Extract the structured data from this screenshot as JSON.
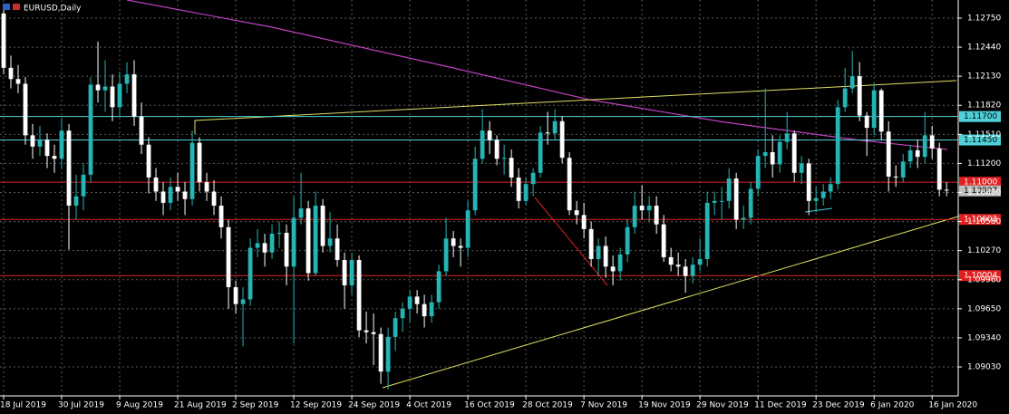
{
  "chart_data": {
    "type": "candlestick",
    "title": "EURUSD,Daily",
    "xlim": [
      -0.5,
      131.6
    ],
    "xticks": [
      {
        "value": 0,
        "label": "18 Jul 2019"
      },
      {
        "value": 8,
        "label": "30 Jul 2019"
      },
      {
        "value": 16,
        "label": "9 Aug 2019"
      },
      {
        "value": 24,
        "label": "21 Aug 2019"
      },
      {
        "value": 32,
        "label": "2 Sep 2019"
      },
      {
        "value": 40,
        "label": "12 Sep 2019"
      },
      {
        "value": 48,
        "label": "24 Sep 2019"
      },
      {
        "value": 56,
        "label": "4 Oct 2019"
      },
      {
        "value": 64,
        "label": "16 Oct 2019"
      },
      {
        "value": 72,
        "label": "28 Oct 2019"
      },
      {
        "value": 80,
        "label": "7 Nov 2019"
      },
      {
        "value": 88,
        "label": "19 Nov 2019"
      },
      {
        "value": 96,
        "label": "29 Nov 2019"
      },
      {
        "value": 104,
        "label": "11 Dec 2019"
      },
      {
        "value": 112,
        "label": "23 Dec 2019"
      },
      {
        "value": 120,
        "label": "6 Jan 2020"
      },
      {
        "value": 128,
        "label": "16 Jan 2020"
      }
    ],
    "ylim": [
      1.08721,
      1.12943
    ],
    "yticks": [
      {
        "value": 1.1275,
        "label": "1.12750"
      },
      {
        "value": 1.1244,
        "label": "1.12440"
      },
      {
        "value": 1.1213,
        "label": "1.12130"
      },
      {
        "value": 1.1182,
        "label": "1.11820"
      },
      {
        "value": 1.1151,
        "label": "1.11510"
      },
      {
        "value": 1.112,
        "label": "1.11200"
      },
      {
        "value": 1.1089,
        "label": "1.10890"
      },
      {
        "value": 1.1058,
        "label": "1.10580"
      },
      {
        "value": 1.1027,
        "label": "1.10270"
      },
      {
        "value": 1.0996,
        "label": "1.09960"
      },
      {
        "value": 1.0965,
        "label": "1.09650"
      },
      {
        "value": 1.0934,
        "label": "1.09340"
      },
      {
        "value": 1.0903,
        "label": "1.09030"
      }
    ],
    "grid": true,
    "up_color": "#26b5b5",
    "down_color": "#ffffff",
    "levels": [
      {
        "value": 1.117,
        "label": "1.11700",
        "color": "#4fd0d8",
        "line": true
      },
      {
        "value": 1.1145,
        "label": "1.11450",
        "color": "#4fd0d8",
        "line": true
      },
      {
        "value": 1.11,
        "label": "1.11000",
        "color": "#e02020",
        "line": true
      },
      {
        "value": 1.10907,
        "label": "1.10907",
        "color": "#c0c0c0",
        "line": false
      },
      {
        "value": 1.10603,
        "label": "1.10603",
        "color": "#e02020",
        "line": true
      },
      {
        "value": 1.10004,
        "label": "1.10004",
        "color": "#e02020",
        "line": true
      }
    ],
    "ohlc": [
      [
        1.128,
        1.1286,
        1.1215,
        1.1222
      ],
      [
        1.1222,
        1.1235,
        1.12,
        1.121
      ],
      [
        1.121,
        1.1225,
        1.1195,
        1.1205
      ],
      [
        1.1205,
        1.1212,
        1.114,
        1.115
      ],
      [
        1.115,
        1.1162,
        1.1125,
        1.1138
      ],
      [
        1.1138,
        1.116,
        1.1128,
        1.1145
      ],
      [
        1.1145,
        1.1152,
        1.1115,
        1.1128
      ],
      [
        1.1128,
        1.114,
        1.111,
        1.1125
      ],
      [
        1.1125,
        1.1168,
        1.1115,
        1.1155
      ],
      [
        1.1155,
        1.1162,
        1.1028,
        1.1075
      ],
      [
        1.1075,
        1.1108,
        1.106,
        1.1085
      ],
      [
        1.1085,
        1.112,
        1.107,
        1.1108
      ],
      [
        1.1108,
        1.1212,
        1.11,
        1.1204
      ],
      [
        1.1204,
        1.125,
        1.1185,
        1.1198
      ],
      [
        1.1198,
        1.123,
        1.1175,
        1.1202
      ],
      [
        1.1202,
        1.1215,
        1.1165,
        1.118
      ],
      [
        1.118,
        1.1218,
        1.117,
        1.1205
      ],
      [
        1.1205,
        1.1228,
        1.1195,
        1.1215
      ],
      [
        1.1215,
        1.123,
        1.116,
        1.117
      ],
      [
        1.117,
        1.1185,
        1.113,
        1.114
      ],
      [
        1.114,
        1.1148,
        1.1088,
        1.1105
      ],
      [
        1.1105,
        1.1115,
        1.108,
        1.109
      ],
      [
        1.109,
        1.11,
        1.1065,
        1.1078
      ],
      [
        1.1078,
        1.1105,
        1.107,
        1.1095
      ],
      [
        1.1095,
        1.111,
        1.108,
        1.109
      ],
      [
        1.109,
        1.11,
        1.1065,
        1.1082
      ],
      [
        1.1082,
        1.1155,
        1.1075,
        1.1142
      ],
      [
        1.1142,
        1.1148,
        1.109,
        1.11
      ],
      [
        1.11,
        1.111,
        1.108,
        1.109
      ],
      [
        1.109,
        1.1102,
        1.1065,
        1.1075
      ],
      [
        1.1075,
        1.1085,
        1.104,
        1.1052
      ],
      [
        1.1052,
        1.106,
        1.0965,
        1.0988
      ],
      [
        1.0988,
        1.0995,
        1.096,
        1.097
      ],
      [
        1.097,
        1.0988,
        1.0925,
        1.0975
      ],
      [
        1.0975,
        1.104,
        1.0968,
        1.103
      ],
      [
        1.103,
        1.105,
        1.102,
        1.1035
      ],
      [
        1.1035,
        1.1045,
        1.101,
        1.1025
      ],
      [
        1.1025,
        1.1055,
        1.1018,
        1.1045
      ],
      [
        1.1045,
        1.1058,
        1.103,
        1.1046
      ],
      [
        1.1046,
        1.1055,
        1.099,
        1.101
      ],
      [
        1.101,
        1.1085,
        1.0928,
        1.1062
      ],
      [
        1.1062,
        1.111,
        1.1055,
        1.1072
      ],
      [
        1.1072,
        1.108,
        1.0995,
        1.1003
      ],
      [
        1.1003,
        1.109,
        1.1,
        1.1075
      ],
      [
        1.1075,
        1.1082,
        1.1025,
        1.1032
      ],
      [
        1.1032,
        1.1068,
        1.1025,
        1.104
      ],
      [
        1.104,
        1.1055,
        1.101,
        1.1017
      ],
      [
        1.1017,
        1.1025,
        1.0965,
        1.099
      ],
      [
        1.099,
        1.1025,
        1.098,
        1.1017
      ],
      [
        1.1017,
        1.1022,
        1.0935,
        1.0942
      ],
      [
        1.0942,
        1.0962,
        1.0928,
        1.094
      ],
      [
        1.094,
        1.096,
        1.0905,
        1.0938
      ],
      [
        1.0938,
        1.0945,
        1.0885,
        1.0898
      ],
      [
        1.0898,
        1.0945,
        1.0879,
        1.0935
      ],
      [
        1.0935,
        1.0962,
        1.092,
        1.0955
      ],
      [
        1.0955,
        1.0972,
        1.094,
        1.0965
      ],
      [
        1.0965,
        1.0985,
        1.095,
        1.0978
      ],
      [
        1.0978,
        1.0985,
        1.096,
        1.097
      ],
      [
        1.097,
        1.098,
        1.0945,
        1.0957
      ],
      [
        1.0957,
        1.098,
        1.095,
        1.0972
      ],
      [
        1.0972,
        1.1012,
        1.0965,
        1.1005
      ],
      [
        1.1005,
        1.1062,
        1.1,
        1.104
      ],
      [
        1.104,
        1.1048,
        1.102,
        1.1032
      ],
      [
        1.1032,
        1.104,
        1.101,
        1.103
      ],
      [
        1.103,
        1.108,
        1.102,
        1.107
      ],
      [
        1.107,
        1.1138,
        1.1065,
        1.1125
      ],
      [
        1.1125,
        1.1178,
        1.112,
        1.1155
      ],
      [
        1.1155,
        1.1165,
        1.113,
        1.1145
      ],
      [
        1.1145,
        1.115,
        1.1118,
        1.1125
      ],
      [
        1.1125,
        1.114,
        1.1108,
        1.1126
      ],
      [
        1.1126,
        1.1135,
        1.1095,
        1.1105
      ],
      [
        1.1105,
        1.1115,
        1.1072,
        1.108
      ],
      [
        1.108,
        1.1105,
        1.1075,
        1.1098
      ],
      [
        1.1098,
        1.1115,
        1.1085,
        1.111
      ],
      [
        1.111,
        1.116,
        1.1105,
        1.1153
      ],
      [
        1.1153,
        1.1175,
        1.114,
        1.1152
      ],
      [
        1.1152,
        1.1178,
        1.1145,
        1.1165
      ],
      [
        1.1165,
        1.117,
        1.112,
        1.1126
      ],
      [
        1.1126,
        1.1132,
        1.1065,
        1.107
      ],
      [
        1.107,
        1.108,
        1.1055,
        1.1065
      ],
      [
        1.1065,
        1.1078,
        1.104,
        1.105
      ],
      [
        1.105,
        1.1058,
        1.101,
        1.1018
      ],
      [
        1.1018,
        1.104,
        1.1,
        1.1032
      ],
      [
        1.1032,
        1.1042,
        1.0998,
        1.101
      ],
      [
        1.101,
        1.1022,
        1.099,
        1.1005
      ],
      [
        1.1005,
        1.103,
        1.0995,
        1.1023
      ],
      [
        1.1023,
        1.106,
        1.1015,
        1.1052
      ],
      [
        1.1052,
        1.109,
        1.1045,
        1.1075
      ],
      [
        1.1075,
        1.1097,
        1.106,
        1.107
      ],
      [
        1.107,
        1.1085,
        1.1058,
        1.1075
      ],
      [
        1.1075,
        1.1085,
        1.1045,
        1.1055
      ],
      [
        1.1055,
        1.1065,
        1.1015,
        1.102
      ],
      [
        1.102,
        1.103,
        1.1005,
        1.1012
      ],
      [
        1.1012,
        1.1025,
        1.1,
        1.101
      ],
      [
        1.101,
        1.1018,
        1.0982,
        1.1
      ],
      [
        1.1,
        1.102,
        1.0992,
        1.1012
      ],
      [
        1.1012,
        1.104,
        1.1005,
        1.1018
      ],
      [
        1.1018,
        1.109,
        1.101,
        1.1078
      ],
      [
        1.1078,
        1.109,
        1.1065,
        1.108
      ],
      [
        1.108,
        1.1095,
        1.106,
        1.108
      ],
      [
        1.108,
        1.1115,
        1.1072,
        1.1104
      ],
      [
        1.1104,
        1.111,
        1.105,
        1.106
      ],
      [
        1.106,
        1.1075,
        1.105,
        1.1062
      ],
      [
        1.1062,
        1.11,
        1.1055,
        1.1093
      ],
      [
        1.1093,
        1.1135,
        1.1085,
        1.1128
      ],
      [
        1.1128,
        1.12,
        1.1115,
        1.1132
      ],
      [
        1.1132,
        1.115,
        1.1105,
        1.1119
      ],
      [
        1.1119,
        1.115,
        1.111,
        1.1143
      ],
      [
        1.1143,
        1.1175,
        1.1135,
        1.1152
      ],
      [
        1.1152,
        1.1155,
        1.11,
        1.111
      ],
      [
        1.111,
        1.1128,
        1.1098,
        1.112
      ],
      [
        1.112,
        1.1125,
        1.1065,
        1.108
      ],
      [
        1.108,
        1.1095,
        1.1068,
        1.1083
      ],
      [
        1.1083,
        1.1098,
        1.1075,
        1.109
      ],
      [
        1.109,
        1.1105,
        1.1082,
        1.1098
      ],
      [
        1.1098,
        1.1188,
        1.1092,
        1.118
      ],
      [
        1.118,
        1.1222,
        1.1175,
        1.12
      ],
      [
        1.12,
        1.124,
        1.1195,
        1.1213
      ],
      [
        1.1213,
        1.1228,
        1.1165,
        1.1171
      ],
      [
        1.1171,
        1.1175,
        1.1128,
        1.1158
      ],
      [
        1.1158,
        1.1205,
        1.115,
        1.1198
      ],
      [
        1.1198,
        1.12,
        1.1145,
        1.1154
      ],
      [
        1.1154,
        1.1165,
        1.109,
        1.1106
      ],
      [
        1.1106,
        1.1118,
        1.1095,
        1.1105
      ],
      [
        1.1105,
        1.113,
        1.11,
        1.1122
      ],
      [
        1.1122,
        1.114,
        1.1115,
        1.1134
      ],
      [
        1.1134,
        1.1145,
        1.1115,
        1.1127
      ],
      [
        1.1127,
        1.1175,
        1.112,
        1.115
      ],
      [
        1.115,
        1.116,
        1.1125,
        1.1136
      ],
      [
        1.1136,
        1.1142,
        1.1085,
        1.1092
      ],
      [
        1.1092,
        1.11,
        1.1085,
        1.1091
      ]
    ]
  }
}
